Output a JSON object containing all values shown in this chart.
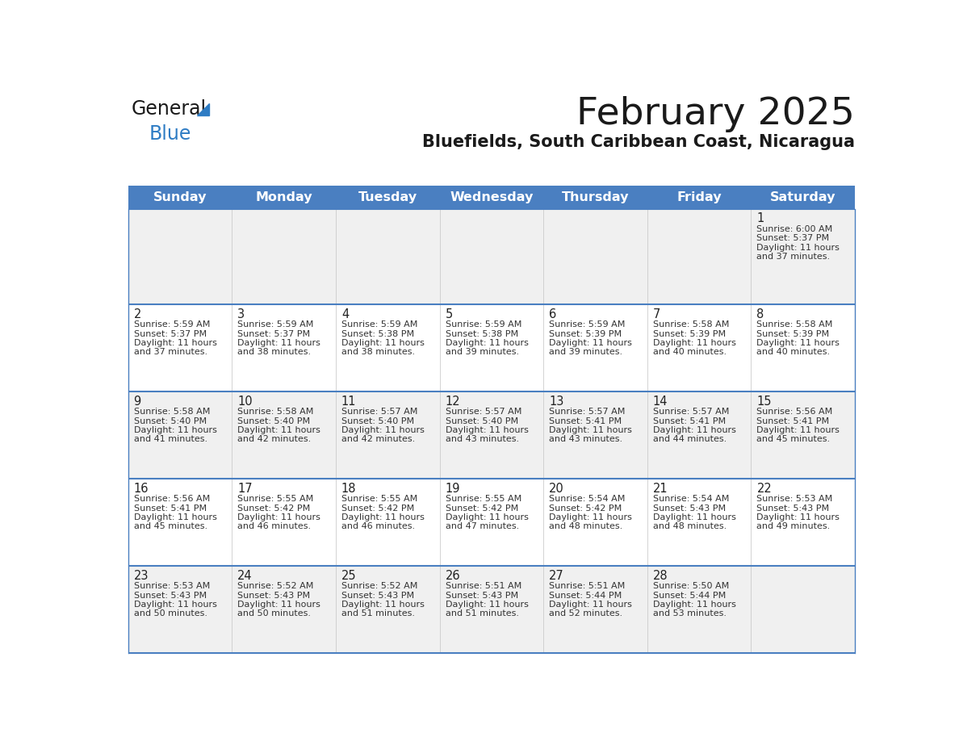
{
  "title": "February 2025",
  "subtitle": "Bluefields, South Caribbean Coast, Nicaragua",
  "header_bg": "#4a7fc1",
  "header_text_color": "#FFFFFF",
  "cell_bg_odd": "#f0f0f0",
  "cell_bg_even": "#FFFFFF",
  "day_names": [
    "Sunday",
    "Monday",
    "Tuesday",
    "Wednesday",
    "Thursday",
    "Friday",
    "Saturday"
  ],
  "title_color": "#1a1a1a",
  "subtitle_color": "#1a1a1a",
  "day_number_color": "#222222",
  "info_color": "#333333",
  "line_color": "#4a7fc1",
  "logo_general_color": "#1a1a1a",
  "logo_blue_color": "#2e7cc4",
  "weeks": [
    [
      null,
      null,
      null,
      null,
      null,
      null,
      {
        "day": 1,
        "sunrise": "6:00 AM",
        "sunset": "5:37 PM",
        "daylight_hours": 11,
        "daylight_minutes": 37
      }
    ],
    [
      {
        "day": 2,
        "sunrise": "5:59 AM",
        "sunset": "5:37 PM",
        "daylight_hours": 11,
        "daylight_minutes": 37
      },
      {
        "day": 3,
        "sunrise": "5:59 AM",
        "sunset": "5:37 PM",
        "daylight_hours": 11,
        "daylight_minutes": 38
      },
      {
        "day": 4,
        "sunrise": "5:59 AM",
        "sunset": "5:38 PM",
        "daylight_hours": 11,
        "daylight_minutes": 38
      },
      {
        "day": 5,
        "sunrise": "5:59 AM",
        "sunset": "5:38 PM",
        "daylight_hours": 11,
        "daylight_minutes": 39
      },
      {
        "day": 6,
        "sunrise": "5:59 AM",
        "sunset": "5:39 PM",
        "daylight_hours": 11,
        "daylight_minutes": 39
      },
      {
        "day": 7,
        "sunrise": "5:58 AM",
        "sunset": "5:39 PM",
        "daylight_hours": 11,
        "daylight_minutes": 40
      },
      {
        "day": 8,
        "sunrise": "5:58 AM",
        "sunset": "5:39 PM",
        "daylight_hours": 11,
        "daylight_minutes": 40
      }
    ],
    [
      {
        "day": 9,
        "sunrise": "5:58 AM",
        "sunset": "5:40 PM",
        "daylight_hours": 11,
        "daylight_minutes": 41
      },
      {
        "day": 10,
        "sunrise": "5:58 AM",
        "sunset": "5:40 PM",
        "daylight_hours": 11,
        "daylight_minutes": 42
      },
      {
        "day": 11,
        "sunrise": "5:57 AM",
        "sunset": "5:40 PM",
        "daylight_hours": 11,
        "daylight_minutes": 42
      },
      {
        "day": 12,
        "sunrise": "5:57 AM",
        "sunset": "5:40 PM",
        "daylight_hours": 11,
        "daylight_minutes": 43
      },
      {
        "day": 13,
        "sunrise": "5:57 AM",
        "sunset": "5:41 PM",
        "daylight_hours": 11,
        "daylight_minutes": 43
      },
      {
        "day": 14,
        "sunrise": "5:57 AM",
        "sunset": "5:41 PM",
        "daylight_hours": 11,
        "daylight_minutes": 44
      },
      {
        "day": 15,
        "sunrise": "5:56 AM",
        "sunset": "5:41 PM",
        "daylight_hours": 11,
        "daylight_minutes": 45
      }
    ],
    [
      {
        "day": 16,
        "sunrise": "5:56 AM",
        "sunset": "5:41 PM",
        "daylight_hours": 11,
        "daylight_minutes": 45
      },
      {
        "day": 17,
        "sunrise": "5:55 AM",
        "sunset": "5:42 PM",
        "daylight_hours": 11,
        "daylight_minutes": 46
      },
      {
        "day": 18,
        "sunrise": "5:55 AM",
        "sunset": "5:42 PM",
        "daylight_hours": 11,
        "daylight_minutes": 46
      },
      {
        "day": 19,
        "sunrise": "5:55 AM",
        "sunset": "5:42 PM",
        "daylight_hours": 11,
        "daylight_minutes": 47
      },
      {
        "day": 20,
        "sunrise": "5:54 AM",
        "sunset": "5:42 PM",
        "daylight_hours": 11,
        "daylight_minutes": 48
      },
      {
        "day": 21,
        "sunrise": "5:54 AM",
        "sunset": "5:43 PM",
        "daylight_hours": 11,
        "daylight_minutes": 48
      },
      {
        "day": 22,
        "sunrise": "5:53 AM",
        "sunset": "5:43 PM",
        "daylight_hours": 11,
        "daylight_minutes": 49
      }
    ],
    [
      {
        "day": 23,
        "sunrise": "5:53 AM",
        "sunset": "5:43 PM",
        "daylight_hours": 11,
        "daylight_minutes": 50
      },
      {
        "day": 24,
        "sunrise": "5:52 AM",
        "sunset": "5:43 PM",
        "daylight_hours": 11,
        "daylight_minutes": 50
      },
      {
        "day": 25,
        "sunrise": "5:52 AM",
        "sunset": "5:43 PM",
        "daylight_hours": 11,
        "daylight_minutes": 51
      },
      {
        "day": 26,
        "sunrise": "5:51 AM",
        "sunset": "5:43 PM",
        "daylight_hours": 11,
        "daylight_minutes": 51
      },
      {
        "day": 27,
        "sunrise": "5:51 AM",
        "sunset": "5:44 PM",
        "daylight_hours": 11,
        "daylight_minutes": 52
      },
      {
        "day": 28,
        "sunrise": "5:50 AM",
        "sunset": "5:44 PM",
        "daylight_hours": 11,
        "daylight_minutes": 53
      },
      null
    ]
  ]
}
